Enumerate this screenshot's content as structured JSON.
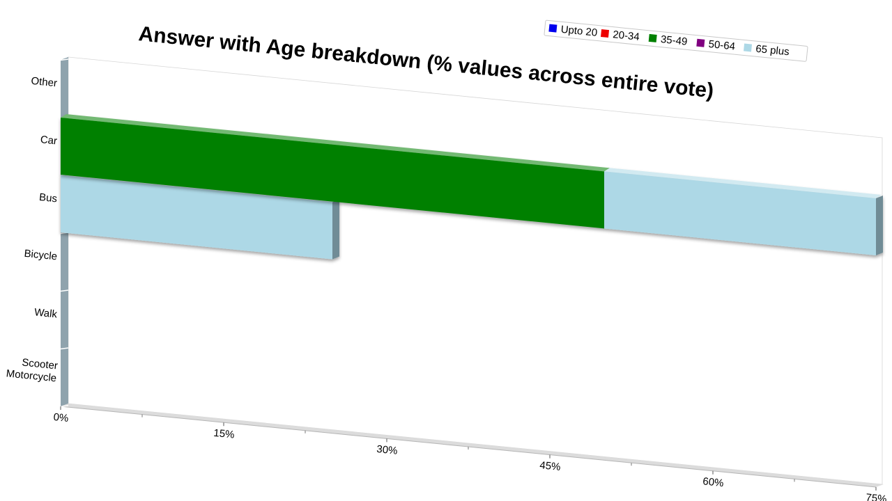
{
  "chart_data": {
    "type": "bar",
    "orientation": "horizontal",
    "stacked": true,
    "title": "Answer with Age breakdown (% values across entire vote)",
    "categories": [
      "Other",
      "Car",
      "Bus",
      "Bicycle",
      "Walk",
      "Scooter Motorcycle"
    ],
    "category_lines": [
      [
        "Other"
      ],
      [
        "Car"
      ],
      [
        "Bus"
      ],
      [
        "Bicycle"
      ],
      [
        "Walk"
      ],
      [
        "Scooter",
        "Motorcycle"
      ]
    ],
    "x_ticks": [
      "0%",
      "15%",
      "30%",
      "45%",
      "60%",
      "75%"
    ],
    "xlim": [
      0,
      75
    ],
    "legend_position": "top-right",
    "series": [
      {
        "name": "Upto 20",
        "color": "#0000ee",
        "values": [
          0,
          0,
          0,
          0,
          0,
          0
        ]
      },
      {
        "name": "20-34",
        "color": "#ee0000",
        "values": [
          0,
          0,
          0,
          0,
          0,
          0
        ]
      },
      {
        "name": "35-49",
        "color": "#008000",
        "values": [
          0,
          50,
          0,
          0,
          0,
          0
        ]
      },
      {
        "name": "50-64",
        "color": "#800080",
        "values": [
          0,
          0,
          0,
          0,
          0,
          0
        ]
      },
      {
        "name": "65 plus",
        "color": "#add8e6",
        "values": [
          0,
          25,
          25,
          0,
          0,
          0
        ]
      }
    ]
  }
}
